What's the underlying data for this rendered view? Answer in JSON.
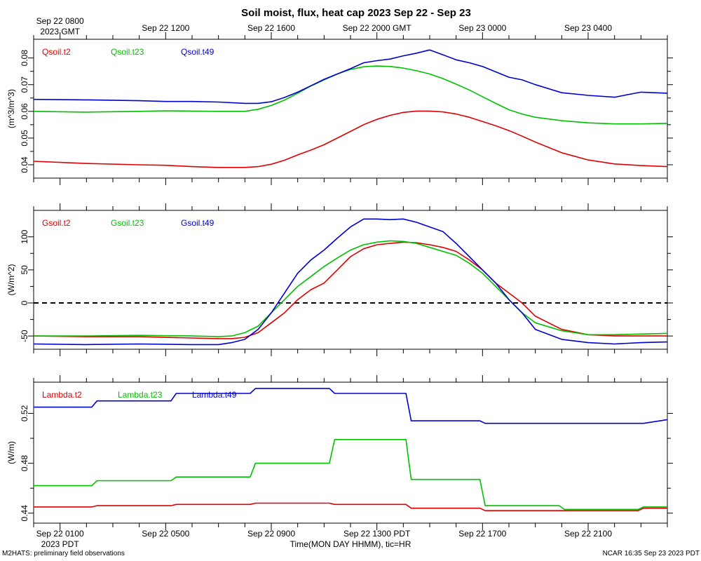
{
  "title": "Soil moist, flux, heat cap 2023 Sep 22 - Sep 23",
  "footer_left": "M2HATS: preliminary field observations",
  "footer_right": "NCAR 16:35 Sep 23 2023 PDT",
  "top_axis": {
    "ticks": [
      {
        "hour": 0,
        "label": "Sep 22 0800"
      },
      {
        "hour": 4,
        "label": "Sep 22 1200"
      },
      {
        "hour": 8,
        "label": "Sep 22 1600"
      },
      {
        "hour": 12,
        "label": "Sep 22 2000 GMT"
      },
      {
        "hour": 16,
        "label": "Sep 23 0000"
      },
      {
        "hour": 20,
        "label": "Sep 23 0400"
      }
    ],
    "first_sub": "2023 GMT"
  },
  "bottom_axis": {
    "ticks": [
      {
        "hour": 0,
        "label": "Sep 22 0100"
      },
      {
        "hour": 4,
        "label": "Sep 22 0500"
      },
      {
        "hour": 8,
        "label": "Sep 22 0900"
      },
      {
        "hour": 12,
        "label": "Sep 22 1300 PDT"
      },
      {
        "hour": 16,
        "label": "Sep 22 1700"
      },
      {
        "hour": 20,
        "label": "Sep 22 2100"
      }
    ],
    "first_sub": "2023 PDT",
    "xlabel": "Time(MON DAY HHMM), tic=HR"
  },
  "x_range_hours": [
    -1,
    23
  ],
  "colors": {
    "red": "#e00000",
    "green": "#00c000",
    "blue": "#0000d0",
    "axis": "#000000"
  },
  "chart_data": [
    {
      "type": "line",
      "ylabel": "(m^3/m^3)",
      "ylim": [
        0.035,
        0.087
      ],
      "yticks": [
        0.04,
        0.05,
        0.06,
        0.07,
        0.08
      ],
      "ytick_labels": [
        "0.04",
        "0.05",
        "0.06",
        "0.07",
        "0.08"
      ],
      "zero_line": false,
      "x": [
        -1,
        1,
        3,
        4,
        5,
        6,
        7,
        7.5,
        8,
        8.5,
        9,
        9.5,
        10,
        10.5,
        11,
        11.5,
        12,
        12.5,
        13,
        13.5,
        14,
        14.5,
        15,
        15.5,
        16,
        16.5,
        17,
        17.5,
        18,
        19,
        20,
        21,
        22,
        23
      ],
      "series": [
        {
          "name": "Qsoil.t2",
          "color": "red",
          "legend_label": "Qsoil.t2",
          "values": [
            0.0413,
            0.0405,
            0.04,
            0.0398,
            0.0393,
            0.039,
            0.039,
            0.0393,
            0.0402,
            0.0417,
            0.0437,
            0.0455,
            0.0475,
            0.05,
            0.0525,
            0.055,
            0.057,
            0.0585,
            0.0596,
            0.0601,
            0.0601,
            0.0598,
            0.059,
            0.0578,
            0.0562,
            0.0546,
            0.0528,
            0.0507,
            0.0485,
            0.0445,
            0.0418,
            0.0403,
            0.0397,
            0.0393
          ]
        },
        {
          "name": "Qsoil.t23",
          "color": "green",
          "legend_label": "Qsoil.t23",
          "values": [
            0.06,
            0.0597,
            0.06,
            0.0602,
            0.0601,
            0.06,
            0.06,
            0.0608,
            0.0622,
            0.0642,
            0.0668,
            0.0695,
            0.0718,
            0.074,
            0.0757,
            0.0767,
            0.077,
            0.0768,
            0.0762,
            0.0752,
            0.074,
            0.0723,
            0.0702,
            0.068,
            0.0655,
            0.063,
            0.0606,
            0.059,
            0.0578,
            0.0565,
            0.0557,
            0.0553,
            0.0553,
            0.0555
          ]
        },
        {
          "name": "Qsoil.t49",
          "color": "blue",
          "legend_label": "Qsoil.t49",
          "values": [
            0.0645,
            0.0643,
            0.064,
            0.0637,
            0.0637,
            0.0635,
            0.063,
            0.063,
            0.0636,
            0.0652,
            0.0672,
            0.0696,
            0.072,
            0.074,
            0.076,
            0.0782,
            0.079,
            0.0796,
            0.0808,
            0.0818,
            0.083,
            0.0812,
            0.0793,
            0.0782,
            0.0768,
            0.0748,
            0.0728,
            0.0718,
            0.07,
            0.067,
            0.066,
            0.0653,
            0.0672,
            0.0668
          ]
        }
      ]
    },
    {
      "type": "line",
      "ylabel": "(W/m^2)",
      "ylim": [
        -70,
        140
      ],
      "yticks": [
        -50,
        0,
        50,
        100
      ],
      "ytick_labels": [
        "-50",
        "0",
        "50",
        "100"
      ],
      "zero_line": true,
      "x": [
        -1,
        1,
        3,
        5,
        6,
        6.5,
        7,
        7.5,
        8,
        8.5,
        9,
        9.5,
        10,
        10.5,
        11,
        11.5,
        12,
        12.5,
        13,
        13.5,
        14,
        14.5,
        15,
        15.5,
        16,
        16.5,
        17,
        17.5,
        18,
        19,
        20,
        21,
        22,
        23
      ],
      "series": [
        {
          "name": "Gsoil.t2",
          "color": "red",
          "legend_label": "Gsoil.t2",
          "values": [
            -50,
            -51,
            -51,
            -53,
            -54,
            -54,
            -52,
            -45,
            -30,
            -15,
            5,
            20,
            30,
            50,
            70,
            82,
            88,
            90,
            92,
            91,
            88,
            84,
            78,
            65,
            50,
            30,
            15,
            0,
            -20,
            -40,
            -48,
            -50,
            -50,
            -50
          ]
        },
        {
          "name": "Gsoil.t23",
          "color": "green",
          "legend_label": "Gsoil.t23",
          "values": [
            -50,
            -50,
            -49,
            -50,
            -51,
            -50,
            -45,
            -35,
            -15,
            5,
            25,
            40,
            55,
            68,
            80,
            88,
            92,
            94,
            93,
            90,
            84,
            78,
            72,
            60,
            45,
            25,
            5,
            -15,
            -30,
            -42,
            -48,
            -48,
            -47,
            -46
          ]
        },
        {
          "name": "Gsoil.t49",
          "color": "blue",
          "legend_label": "Gsoil.t49",
          "values": [
            -62,
            -63,
            -62,
            -63,
            -63,
            -60,
            -55,
            -40,
            -15,
            15,
            45,
            65,
            80,
            98,
            115,
            127,
            127,
            126,
            127,
            122,
            115,
            108,
            90,
            70,
            50,
            30,
            5,
            -15,
            -40,
            -55,
            -60,
            -62,
            -60,
            -59
          ]
        }
      ]
    },
    {
      "type": "line",
      "ylabel": "(W/m)",
      "ylim": [
        0.432,
        0.545
      ],
      "yticks": [
        0.44,
        0.48,
        0.52
      ],
      "ytick_labels": [
        "0.44",
        "0.48",
        "0.52"
      ],
      "zero_line": false,
      "step": true,
      "x": [
        -1,
        1.2,
        1.4,
        4.2,
        4.4,
        7.2,
        7.4,
        10.2,
        10.4,
        13.1,
        13.3,
        15.9,
        16.1,
        18.9,
        19.1,
        21.9,
        22.1,
        23
      ],
      "series": [
        {
          "name": "Lambda.t2",
          "color": "red",
          "legend_label": "Lambda.t2",
          "values": [
            0.445,
            0.445,
            0.446,
            0.446,
            0.447,
            0.447,
            0.448,
            0.448,
            0.447,
            0.447,
            0.444,
            0.444,
            0.442,
            0.442,
            0.442,
            0.442,
            0.444,
            0.444
          ]
        },
        {
          "name": "Lambda.t23",
          "color": "green",
          "legend_label": "Lambda.t23",
          "values": [
            0.462,
            0.462,
            0.466,
            0.466,
            0.469,
            0.469,
            0.48,
            0.48,
            0.499,
            0.499,
            0.467,
            0.467,
            0.446,
            0.446,
            0.443,
            0.443,
            0.445,
            0.445
          ]
        },
        {
          "name": "Lambda.t49",
          "color": "blue",
          "legend_label": "Lambda.t49",
          "values": [
            0.525,
            0.525,
            0.53,
            0.53,
            0.536,
            0.536,
            0.54,
            0.54,
            0.536,
            0.536,
            0.514,
            0.514,
            0.512,
            0.512,
            0.512,
            0.512,
            0.512,
            0.515
          ]
        }
      ]
    }
  ]
}
